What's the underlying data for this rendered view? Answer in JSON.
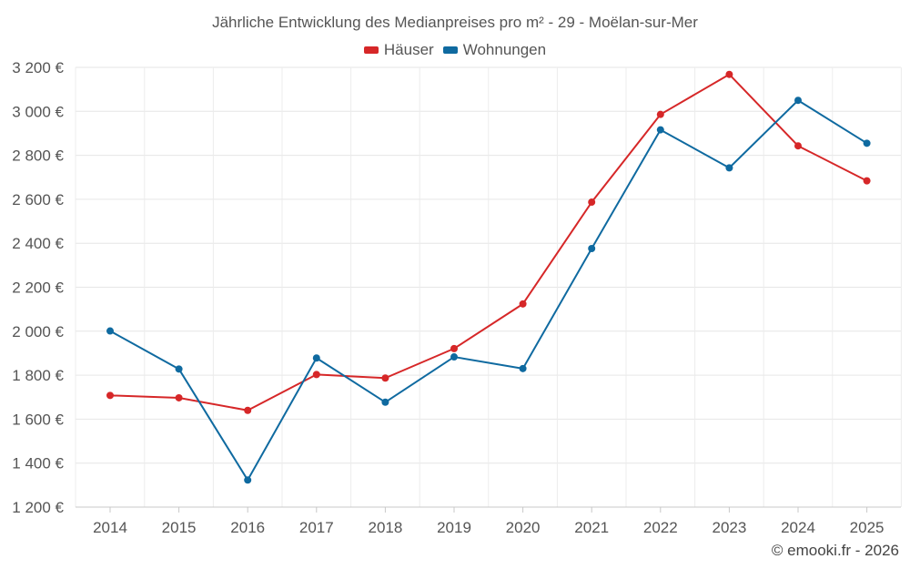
{
  "chart_data": {
    "type": "line",
    "title": "Jährliche Entwicklung des Medianpreises pro m² - 29 - Moëlan-sur-Mer",
    "categories": [
      "2014",
      "2015",
      "2016",
      "2017",
      "2018",
      "2019",
      "2020",
      "2021",
      "2022",
      "2023",
      "2024",
      "2025"
    ],
    "series": [
      {
        "name": "Häuser",
        "color": "#d62728",
        "values": [
          1708,
          1697,
          1640,
          1803,
          1787,
          1921,
          2124,
          2587,
          2986,
          3168,
          2843,
          2684
        ]
      },
      {
        "name": "Wohnungen",
        "color": "#0f6aa0",
        "values": [
          2001,
          1828,
          1323,
          1878,
          1677,
          1883,
          1830,
          2376,
          2916,
          2743,
          3050,
          2855
        ]
      }
    ],
    "ylim": [
      1200,
      3200
    ],
    "yticks": [
      1200,
      1400,
      1600,
      1800,
      2000,
      2200,
      2400,
      2600,
      2800,
      3000,
      3200
    ],
    "ytick_labels": [
      "1 200 €",
      "1 400 €",
      "1 600 €",
      "1 800 €",
      "2 000 €",
      "2 200 €",
      "2 400 €",
      "2 600 €",
      "2 800 €",
      "3 000 €",
      "3 200 €"
    ],
    "legend_position": "top-center",
    "grid": true
  },
  "credit": "© emooki.fr - 2026"
}
